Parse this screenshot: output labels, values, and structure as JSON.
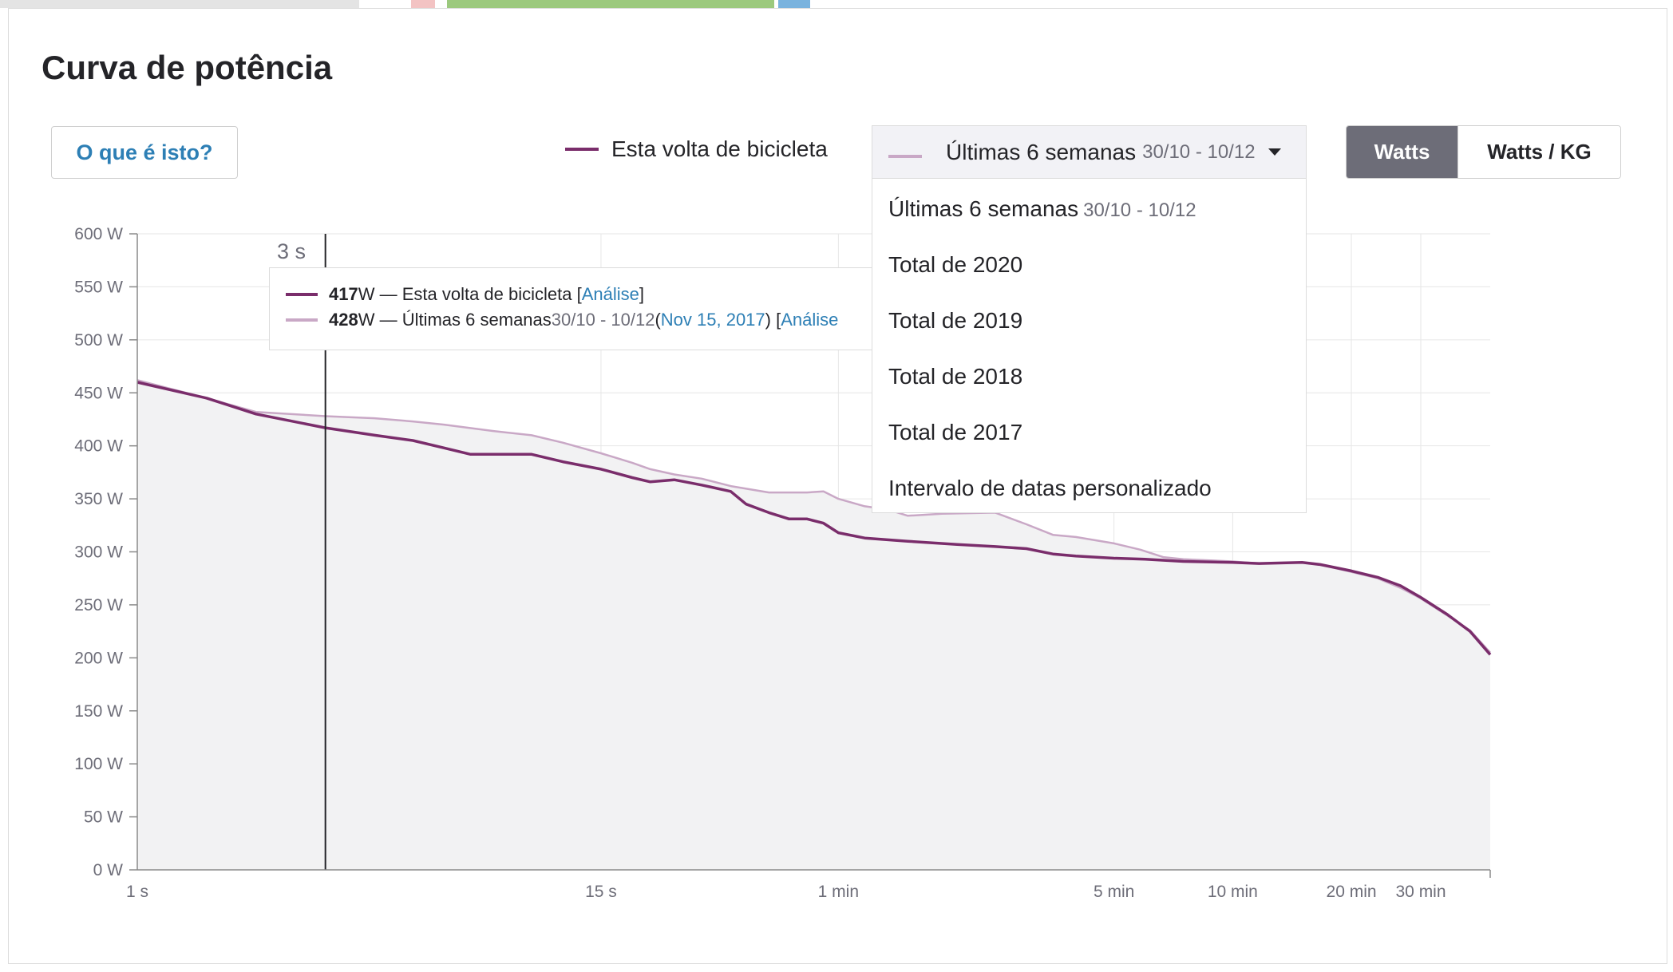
{
  "panel": {
    "title": "Curva de potência",
    "what_button": "O que é isto?"
  },
  "legend": {
    "ride_label": "Esta volta de bicicleta",
    "ride_color": "#7a2d6b",
    "compare_color": "#c9a8c6"
  },
  "dropdown": {
    "selected_label": "Últimas 6 semanas",
    "selected_range": "30/10 - 10/12",
    "caret_icon": "chevron-down-icon",
    "options": [
      {
        "label": "Últimas 6 semanas",
        "range": "30/10 - 10/12"
      },
      {
        "label": "Total de 2020",
        "range": ""
      },
      {
        "label": "Total de 2019",
        "range": ""
      },
      {
        "label": "Total de 2018",
        "range": ""
      },
      {
        "label": "Total de 2017",
        "range": ""
      },
      {
        "label": "Intervalo de datas personalizado",
        "range": ""
      }
    ]
  },
  "units": {
    "watts": "Watts",
    "watts_kg": "Watts / KG",
    "active": "watts"
  },
  "tooltip": {
    "cursor_label": "3 s",
    "ride_value": "417",
    "ride_unit": " W — Esta volta de bicicleta [",
    "ride_link": "Análise",
    "ride_close": "]",
    "compare_value": "428",
    "compare_unit": " W — Últimas 6 semanas ",
    "compare_range": "30/10 - 10/12",
    "compare_open": " (",
    "compare_date": "Nov 15, 2017",
    "compare_mid": ") [",
    "compare_link": "Análise"
  },
  "chart_data": {
    "type": "line",
    "x_scale": "log",
    "xlabel": "",
    "ylabel": "",
    "ylim": [
      0,
      600
    ],
    "y_ticks": [
      "600 W",
      "550 W",
      "500 W",
      "450 W",
      "400 W",
      "350 W",
      "300 W",
      "250 W",
      "200 W",
      "150 W",
      "100 W",
      "50 W",
      "0 W"
    ],
    "x_ticks": [
      {
        "label": "1 s",
        "seconds": 1
      },
      {
        "label": "15 s",
        "seconds": 15
      },
      {
        "label": "1 min",
        "seconds": 60
      },
      {
        "label": "5 min",
        "seconds": 300
      },
      {
        "label": "10 min",
        "seconds": 600
      },
      {
        "label": "20 min",
        "seconds": 1200
      },
      {
        "label": "30 min",
        "seconds": 1800
      }
    ],
    "x_max_seconds": 2700,
    "cursor_seconds": 3,
    "grid": true,
    "series": [
      {
        "name": "Esta volta de bicicleta",
        "points": [
          [
            1,
            460
          ],
          [
            1.5,
            445
          ],
          [
            2,
            430
          ],
          [
            3,
            417
          ],
          [
            4,
            410
          ],
          [
            5,
            405
          ],
          [
            6,
            398
          ],
          [
            7,
            392
          ],
          [
            10,
            392
          ],
          [
            12,
            385
          ],
          [
            15,
            378
          ],
          [
            18,
            370
          ],
          [
            20,
            366
          ],
          [
            23,
            368
          ],
          [
            27,
            363
          ],
          [
            32,
            357
          ],
          [
            35,
            345
          ],
          [
            40,
            337
          ],
          [
            45,
            331
          ],
          [
            50,
            331
          ],
          [
            55,
            327
          ],
          [
            60,
            318
          ],
          [
            70,
            313
          ],
          [
            90,
            310
          ],
          [
            120,
            307
          ],
          [
            150,
            305
          ],
          [
            180,
            303
          ],
          [
            210,
            298
          ],
          [
            240,
            296
          ],
          [
            300,
            294
          ],
          [
            360,
            293
          ],
          [
            450,
            291
          ],
          [
            600,
            290
          ],
          [
            700,
            289
          ],
          [
            900,
            290
          ],
          [
            1000,
            288
          ],
          [
            1200,
            282
          ],
          [
            1400,
            276
          ],
          [
            1600,
            268
          ],
          [
            1800,
            257
          ],
          [
            2100,
            241
          ],
          [
            2400,
            225
          ],
          [
            2700,
            203
          ]
        ]
      },
      {
        "name": "Últimas 6 semanas 30/10 - 10/12",
        "points": [
          [
            1,
            462
          ],
          [
            1.5,
            445
          ],
          [
            2,
            432
          ],
          [
            3,
            428
          ],
          [
            4,
            426
          ],
          [
            5,
            423
          ],
          [
            6,
            420
          ],
          [
            8,
            414
          ],
          [
            10,
            410
          ],
          [
            12,
            403
          ],
          [
            15,
            393
          ],
          [
            18,
            384
          ],
          [
            20,
            378
          ],
          [
            23,
            373
          ],
          [
            27,
            369
          ],
          [
            32,
            362
          ],
          [
            40,
            356
          ],
          [
            50,
            356
          ],
          [
            55,
            357
          ],
          [
            60,
            350
          ],
          [
            70,
            343
          ],
          [
            80,
            340
          ],
          [
            90,
            334
          ],
          [
            110,
            336
          ],
          [
            150,
            337
          ],
          [
            180,
            326
          ],
          [
            210,
            316
          ],
          [
            240,
            314
          ],
          [
            300,
            308
          ],
          [
            350,
            302
          ],
          [
            400,
            295
          ],
          [
            450,
            293
          ],
          [
            600,
            291
          ],
          [
            700,
            289
          ],
          [
            900,
            290
          ],
          [
            1000,
            288
          ],
          [
            1200,
            281
          ],
          [
            1400,
            275
          ],
          [
            1600,
            266
          ],
          [
            1800,
            256
          ],
          [
            2100,
            240
          ],
          [
            2400,
            226
          ],
          [
            2700,
            205
          ]
        ]
      }
    ]
  }
}
